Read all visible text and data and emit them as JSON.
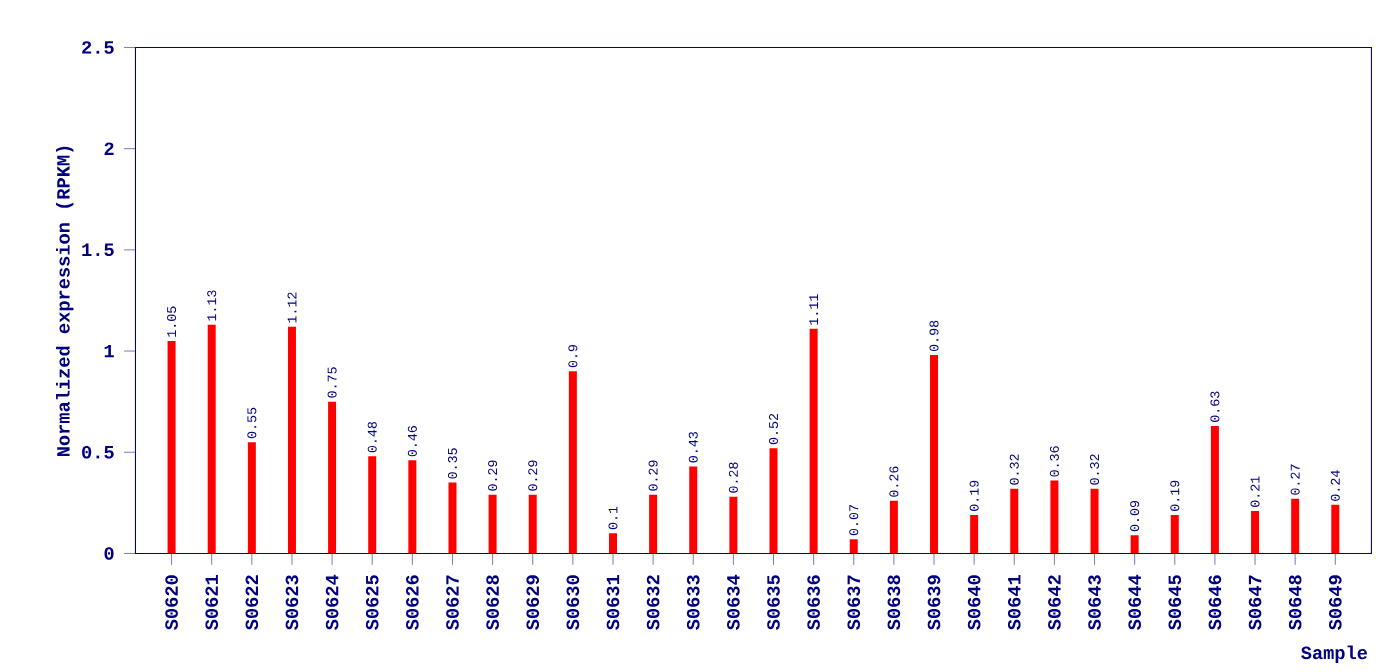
{
  "chart_data": {
    "type": "bar",
    "xlabel": "Sample",
    "ylabel": "Normalized expression (RPKM)",
    "categories": [
      "S0620",
      "S0621",
      "S0622",
      "S0623",
      "S0624",
      "S0625",
      "S0626",
      "S0627",
      "S0628",
      "S0629",
      "S0630",
      "S0631",
      "S0632",
      "S0633",
      "S0634",
      "S0635",
      "S0636",
      "S0637",
      "S0638",
      "S0639",
      "S0640",
      "S0641",
      "S0642",
      "S0643",
      "S0644",
      "S0645",
      "S0646",
      "S0647",
      "S0648",
      "S0649"
    ],
    "values": [
      1.05,
      1.13,
      0.55,
      1.12,
      0.75,
      0.48,
      0.46,
      0.35,
      0.29,
      0.29,
      0.9,
      0.1,
      0.29,
      0.43,
      0.28,
      0.52,
      1.11,
      0.07,
      0.26,
      0.98,
      0.19,
      0.32,
      0.36,
      0.32,
      0.09,
      0.19,
      0.63,
      0.21,
      0.27,
      0.24
    ],
    "color": "#ff0000",
    "ylim": [
      0,
      2.5
    ],
    "yticks": [
      0,
      0.5,
      1,
      1.5,
      2,
      2.5
    ],
    "data_labels": true
  }
}
